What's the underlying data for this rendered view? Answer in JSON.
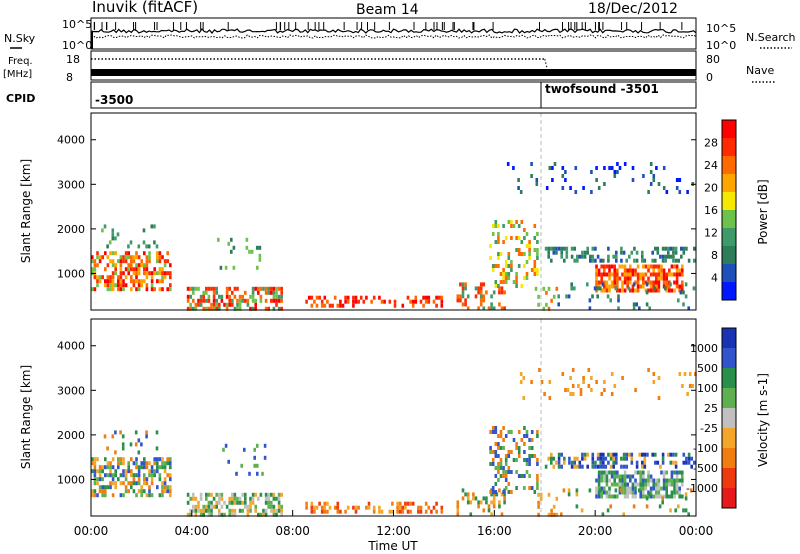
{
  "header": {
    "radar_title": "Inuvik (fitACF)",
    "beam_label": "Beam 14",
    "date_label": "18/Dec/2012"
  },
  "noise_panel": {
    "left_label": "N.Sky",
    "right_label": "N.Search",
    "ticks_left": [
      "10^5",
      "10^0"
    ],
    "ticks_right": [
      "10^5",
      "10^0"
    ]
  },
  "freq_panel": {
    "left_label_1": "Freq.",
    "left_label_2": "[MHz]",
    "right_label": "Nave",
    "ticks_left": [
      "18",
      "8"
    ],
    "ticks_right": [
      "80",
      "0"
    ]
  },
  "cpid_panel": {
    "label": "CPID",
    "cpid_1": "-3500",
    "cpid_2": "twofsound -3501"
  },
  "colors": {
    "power_scale": [
      "#0018ff",
      "#1f4fb8",
      "#2e7d5a",
      "#3f9a6a",
      "#6cc24a",
      "#f6e800",
      "#ffa500",
      "#ff6a00",
      "#ff2a00",
      "#ff0000"
    ],
    "velocity_scale": [
      "#1a33b3",
      "#3355cc",
      "#2a8f4a",
      "#5fb050",
      "#c0c0c0",
      "#f3a62a",
      "#f07d10",
      "#ef3a10",
      "#e61a1a"
    ]
  },
  "chart_data": [
    {
      "type": "heatmap",
      "title": "",
      "xlabel": "",
      "ylabel": "Slant Range [km]",
      "ylim": [
        180,
        4600
      ],
      "yticks": [
        "1000",
        "2000",
        "3000",
        "4000"
      ],
      "xticks": [],
      "colorbar": {
        "label": "Power [dB]",
        "range": [
          0,
          32
        ],
        "ticks": [
          "4",
          "8",
          "12",
          "16",
          "20",
          "24",
          "28"
        ]
      },
      "grid": false
    },
    {
      "type": "heatmap",
      "title": "",
      "xlabel": "Time UT",
      "ylabel": "Slant Range [km]",
      "ylim": [
        180,
        4600
      ],
      "yticks": [
        "1000",
        "2000",
        "3000",
        "4000"
      ],
      "xticks": [
        "00:00",
        "04:00",
        "08:00",
        "12:00",
        "16:00",
        "20:00",
        "00:00"
      ],
      "xrange_hours": [
        0,
        24
      ],
      "colorbar": {
        "label": "Velocity [m s-1]",
        "ticks": [
          "1000",
          "500",
          "100",
          "25",
          "-25",
          "-100",
          "-500",
          "-1000"
        ]
      },
      "grid": false
    }
  ]
}
